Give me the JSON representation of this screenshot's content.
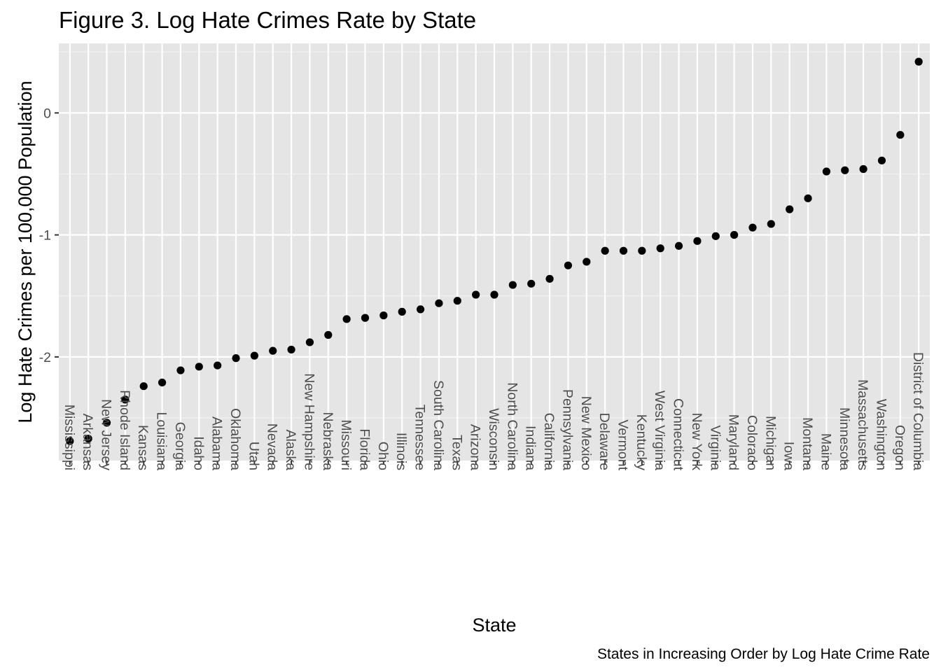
{
  "chart_data": {
    "type": "scatter",
    "title": "Figure 3. Log Hate Crimes Rate by State",
    "xlabel": "State",
    "ylabel": "Log Hate Crimes per 100,000 Population",
    "caption": "States in Increasing Order by Log Hate Crime Rate",
    "ylim": [
      -2.85,
      0.57
    ],
    "yticks": [
      0,
      -1,
      -2
    ],
    "grid": true,
    "legend": "none",
    "colors": {
      "panel": "#e5e5e5",
      "grid_major": "#ffffff",
      "grid_minor": "#f2f2f2",
      "point": "#000000",
      "tick_text": "#4d4d4d"
    },
    "categories": [
      "Mississippi",
      "Arkansas",
      "New Jersey",
      "Rhode Island",
      "Kansas",
      "Louisiana",
      "Georgia",
      "Idaho",
      "Alabama",
      "Oklahoma",
      "Utah",
      "Nevada",
      "Alaska",
      "New Hampshire",
      "Nebraska",
      "Missouri",
      "Florida",
      "Ohio",
      "Illinois",
      "Tennessee",
      "South Carolina",
      "Texas",
      "Arizona",
      "Wisconsin",
      "North Carolina",
      "Indiana",
      "California",
      "Pennsylvania",
      "New Mexico",
      "Delaware",
      "Vermont",
      "Kentucky",
      "West Virginia",
      "Connecticut",
      "New York",
      "Virginia",
      "Maryland",
      "Colorado",
      "Michigan",
      "Iowa",
      "Montana",
      "Maine",
      "Minnesota",
      "Massachusetts",
      "Washington",
      "Oregon",
      "District of Columbia"
    ],
    "values": [
      -2.69,
      -2.67,
      -2.54,
      -2.35,
      -2.24,
      -2.21,
      -2.11,
      -2.08,
      -2.07,
      -2.01,
      -1.99,
      -1.95,
      -1.94,
      -1.88,
      -1.82,
      -1.69,
      -1.68,
      -1.66,
      -1.63,
      -1.61,
      -1.56,
      -1.54,
      -1.49,
      -1.49,
      -1.41,
      -1.4,
      -1.36,
      -1.25,
      -1.22,
      -1.13,
      -1.13,
      -1.13,
      -1.11,
      -1.09,
      -1.05,
      -1.01,
      -1.0,
      -0.94,
      -0.91,
      -0.79,
      -0.7,
      -0.48,
      -0.47,
      -0.46,
      -0.39,
      -0.18,
      0.42
    ]
  }
}
